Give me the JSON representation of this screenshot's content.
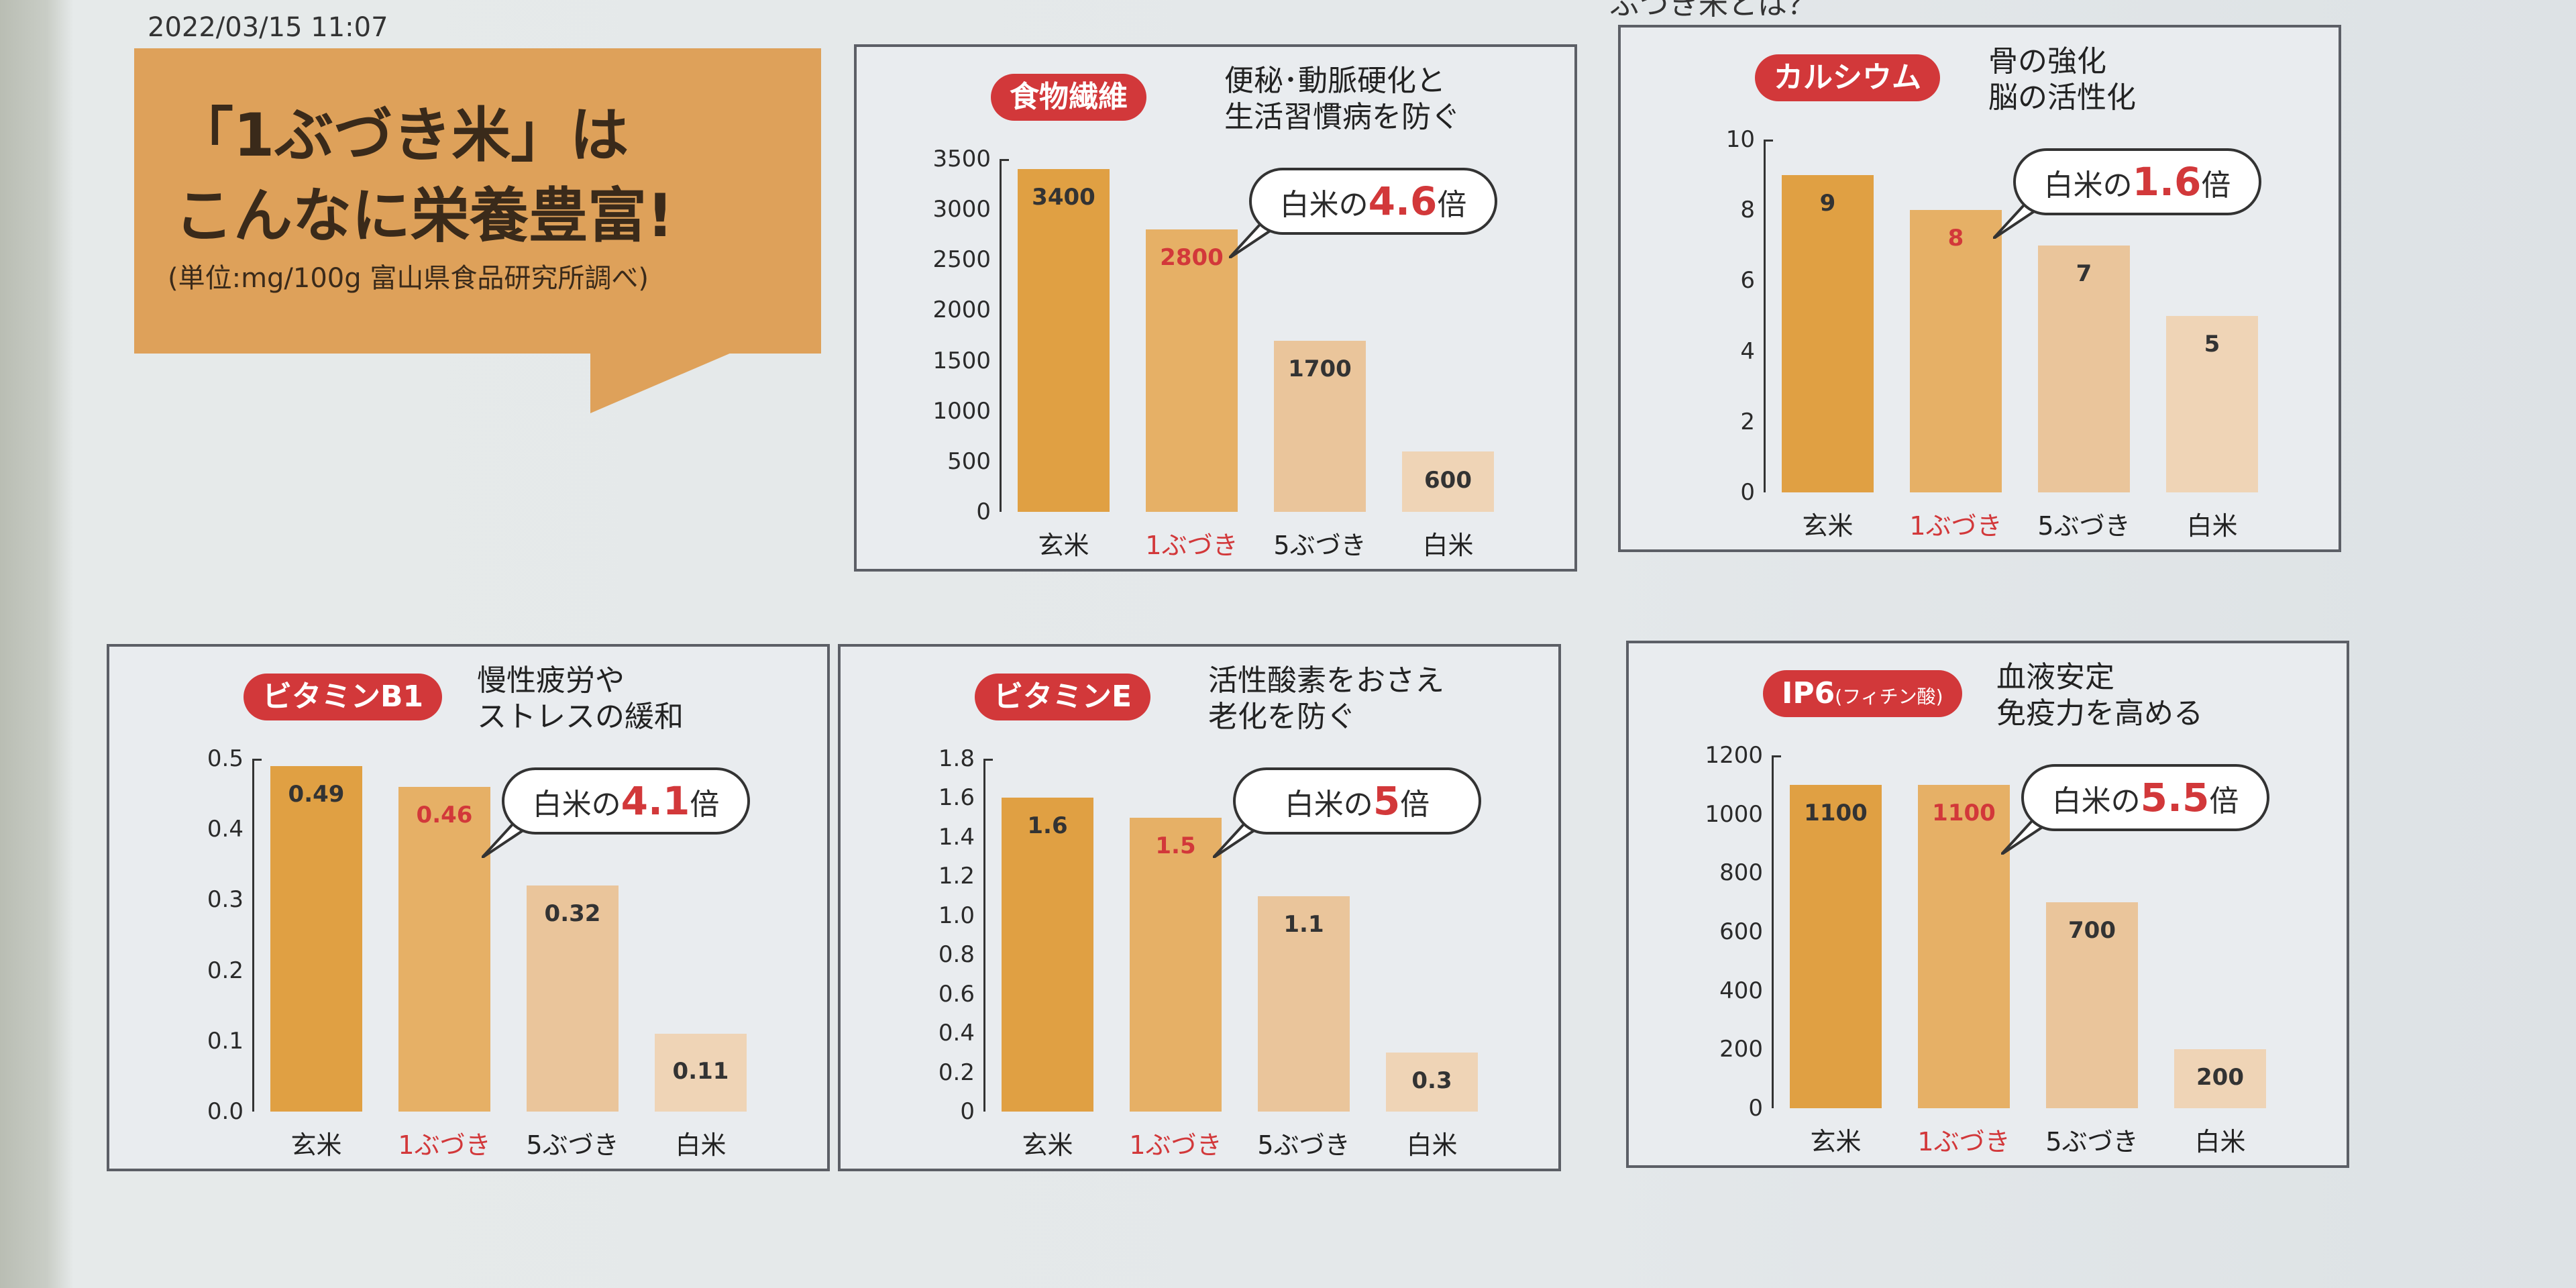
{
  "timestamp": "2022/03/15 11:07",
  "top_cut_heading": "ぶづき米とは？",
  "hero": {
    "title": "「1ぶづき米」は\nこんなに栄養豊富!",
    "note": "(単位:mg/100g 富山県食品研究所調べ)"
  },
  "colors": {
    "brown_rice": "#e0a043",
    "ichibu": "#e6b066",
    "gobu": "#eac59b",
    "white_rice": "#efd4b6",
    "accent_red": "#d2383a",
    "hero_bg": "#dea15a"
  },
  "chart_data": [
    {
      "type": "bar",
      "badge": "食物繊維",
      "badge_sub": "",
      "subtitle": "便秘･動脈硬化と\n生活習慣病を防ぐ",
      "categories": [
        "玄米",
        "1ぶづき",
        "5ぶづき",
        "白米"
      ],
      "values": [
        3400,
        2800,
        1700,
        600
      ],
      "value_labels": [
        "3400",
        "2800",
        "1700",
        "600"
      ],
      "ylim": [
        0,
        3500
      ],
      "yticks": [
        "0",
        "500",
        "1000",
        "1500",
        "2000",
        "2500",
        "3000",
        "3500"
      ],
      "callout": {
        "prefix": "白米の",
        "ratio": "4.6",
        "suffix": "倍"
      }
    },
    {
      "type": "bar",
      "badge": "カルシウム",
      "badge_sub": "",
      "subtitle": "骨の強化\n脳の活性化",
      "categories": [
        "玄米",
        "1ぶづき",
        "5ぶづき",
        "白米"
      ],
      "values": [
        9,
        8,
        7,
        5
      ],
      "value_labels": [
        "9",
        "8",
        "7",
        "5"
      ],
      "ylim": [
        0,
        10
      ],
      "yticks": [
        "0",
        "2",
        "4",
        "6",
        "8",
        "10"
      ],
      "callout": {
        "prefix": "白米の",
        "ratio": "1.6",
        "suffix": "倍"
      }
    },
    {
      "type": "bar",
      "badge": "ビタミンB1",
      "badge_sub": "",
      "subtitle": "慢性疲労や\nストレスの緩和",
      "categories": [
        "玄米",
        "1ぶづき",
        "5ぶづき",
        "白米"
      ],
      "values": [
        0.49,
        0.46,
        0.32,
        0.11
      ],
      "value_labels": [
        "0.49",
        "0.46",
        "0.32",
        "0.11"
      ],
      "ylim": [
        0,
        0.5
      ],
      "yticks": [
        "0.0",
        "0.1",
        "0.2",
        "0.3",
        "0.4",
        "0.5"
      ],
      "callout": {
        "prefix": "白米の",
        "ratio": "4.1",
        "suffix": "倍"
      }
    },
    {
      "type": "bar",
      "badge": "ビタミンE",
      "badge_sub": "",
      "subtitle": "活性酸素をおさえ\n老化を防ぐ",
      "categories": [
        "玄米",
        "1ぶづき",
        "5ぶづき",
        "白米"
      ],
      "values": [
        1.6,
        1.5,
        1.1,
        0.3
      ],
      "value_labels": [
        "1.6",
        "1.5",
        "1.1",
        "0.3"
      ],
      "ylim": [
        0,
        1.8
      ],
      "yticks": [
        "0",
        "0.2",
        "0.4",
        "0.6",
        "0.8",
        "1.0",
        "1.2",
        "1.4",
        "1.6",
        "1.8"
      ],
      "callout": {
        "prefix": "白米の",
        "ratio": "5",
        "suffix": "倍"
      }
    },
    {
      "type": "bar",
      "badge": "IP6",
      "badge_sub": "(フィチン酸)",
      "subtitle": "血液安定\n免疫力を高める",
      "categories": [
        "玄米",
        "1ぶづき",
        "5ぶづき",
        "白米"
      ],
      "values": [
        1100,
        1100,
        700,
        200
      ],
      "value_labels": [
        "1100",
        "1100",
        "700",
        "200"
      ],
      "ylim": [
        0,
        1200
      ],
      "yticks": [
        "0",
        "200",
        "400",
        "600",
        "800",
        "1000",
        "1200"
      ],
      "callout": {
        "prefix": "白米の",
        "ratio": "5.5",
        "suffix": "倍"
      }
    }
  ]
}
